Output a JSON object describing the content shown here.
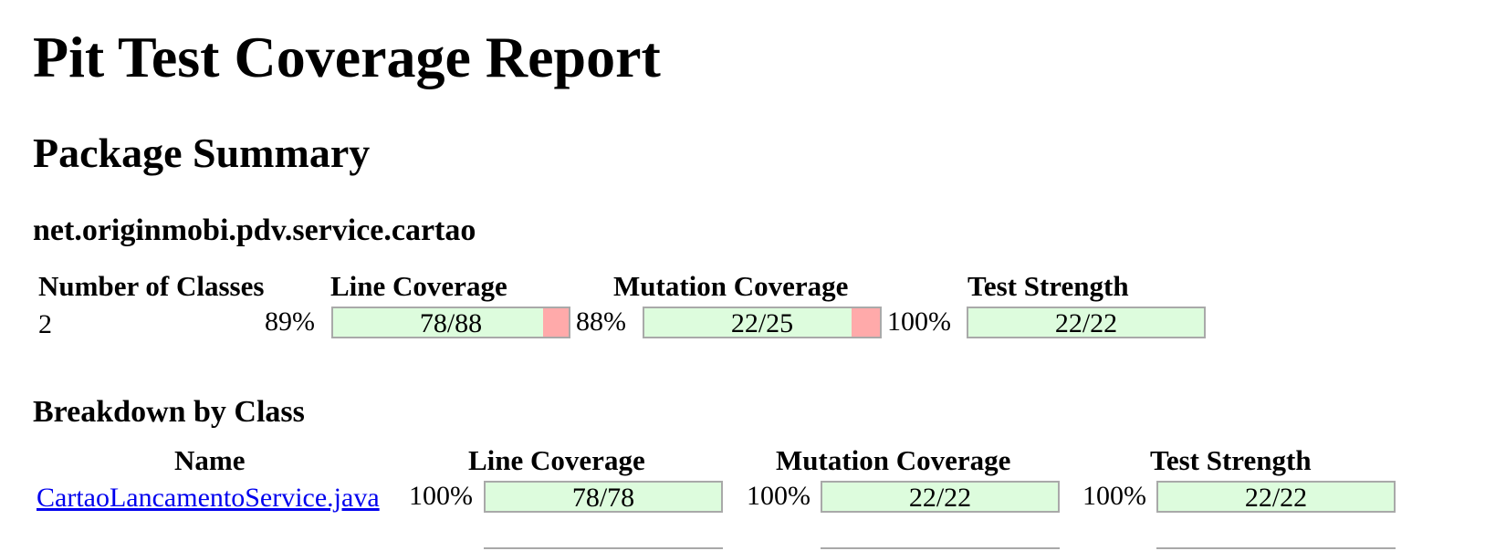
{
  "title": "Pit Test Coverage Report",
  "package_summary": {
    "heading": "Package Summary",
    "package_name": "net.originmobi.pdv.service.cartao",
    "headers": {
      "classes": "Number of Classes",
      "line": "Line Coverage",
      "mutation": "Mutation Coverage",
      "strength": "Test Strength"
    },
    "classes": "2",
    "line": {
      "pct": "89%",
      "ratio": "78/88",
      "fraction": 0.89
    },
    "mutation": {
      "pct": "88%",
      "ratio": "22/25",
      "fraction": 0.88
    },
    "strength": {
      "pct": "100%",
      "ratio": "22/22",
      "fraction": 1.0
    }
  },
  "breakdown": {
    "heading": "Breakdown by Class",
    "headers": {
      "name": "Name",
      "line": "Line Coverage",
      "mutation": "Mutation Coverage",
      "strength": "Test Strength"
    },
    "rows": [
      {
        "name": "CartaoLancamentoService.java",
        "line": {
          "pct": "100%",
          "ratio": "78/78",
          "fraction": 1.0
        },
        "mutation": {
          "pct": "100%",
          "ratio": "22/22",
          "fraction": 1.0
        },
        "strength": {
          "pct": "100%",
          "ratio": "22/22",
          "fraction": 1.0
        }
      }
    ]
  },
  "colors": {
    "covered": "#ddfcdd",
    "uncovered": "#ffaaaa",
    "link": "#0000ee"
  }
}
